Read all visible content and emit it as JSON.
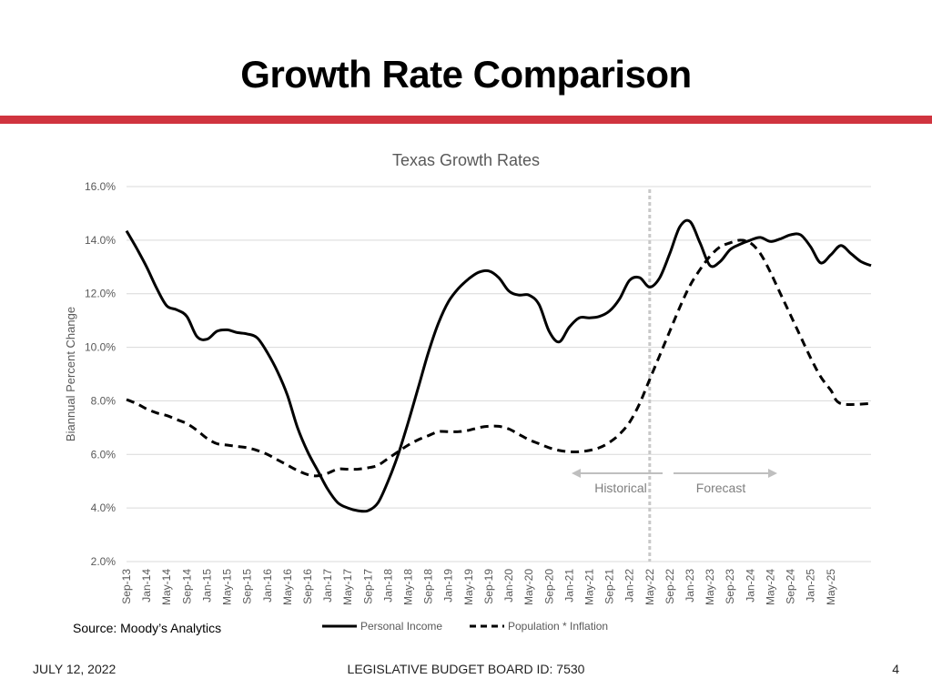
{
  "slide": {
    "title": "Growth Rate Comparison",
    "accent_color": "#d0343f",
    "source": "Source: Moody’s Analytics"
  },
  "footer": {
    "date": "JULY 12, 2022",
    "center": "LEGISLATIVE BUDGET BOARD ID: 7530",
    "page": "4"
  },
  "chart_data": {
    "type": "line",
    "title": "Texas Growth Rates",
    "xlabel": "",
    "ylabel": "Biannual Percent Change",
    "ylim": [
      2.0,
      16.0
    ],
    "y_ticks": [
      "2.0%",
      "4.0%",
      "6.0%",
      "8.0%",
      "10.0%",
      "12.0%",
      "14.0%",
      "16.0%"
    ],
    "grid": true,
    "legend_position": "bottom",
    "categories": [
      "Sep-13",
      "Jan-14",
      "May-14",
      "Sep-14",
      "Jan-15",
      "May-15",
      "Sep-15",
      "Jan-16",
      "May-16",
      "Sep-16",
      "Jan-17",
      "May-17",
      "Sep-17",
      "Jan-18",
      "May-18",
      "Sep-18",
      "Jan-19",
      "May-19",
      "Sep-19",
      "Jan-20",
      "May-20",
      "Sep-20",
      "Jan-21",
      "May-21",
      "Sep-21",
      "Jan-22",
      "May-22",
      "Sep-22",
      "Jan-23",
      "May-23",
      "Sep-23",
      "Jan-24",
      "May-24",
      "Sep-24",
      "Jan-25",
      "May-25"
    ],
    "x_ticks": [
      "Sep-13",
      "Jan-14",
      "May-14",
      "Sep-14",
      "Jan-15",
      "May-15",
      "Sep-15",
      "Jan-16",
      "May-16",
      "Sep-16",
      "Jan-17",
      "May-17",
      "Sep-17",
      "Jan-18",
      "May-18",
      "Sep-18",
      "Jan-19",
      "May-19",
      "Sep-19",
      "Jan-20",
      "May-20",
      "Sep-20",
      "Jan-21",
      "May-21",
      "Sep-21",
      "Jan-22",
      "May-22",
      "Sep-22",
      "Jan-23",
      "May-23",
      "Sep-23",
      "Jan-24",
      "May-24",
      "Sep-24",
      "Jan-25",
      "May-25"
    ],
    "divider_at": "May-22",
    "annotations": {
      "left": "Historical",
      "right": "Forecast"
    },
    "series": [
      {
        "name": "Personal Income",
        "style": "solid",
        "color": "#000000",
        "points": [
          [
            "Sep-13",
            14.35
          ],
          [
            "Nov-13",
            13.7
          ],
          [
            "Jan-14",
            13.0
          ],
          [
            "Mar-14",
            12.2
          ],
          [
            "May-14",
            11.55
          ],
          [
            "Jul-14",
            11.4
          ],
          [
            "Sep-14",
            11.15
          ],
          [
            "Nov-14",
            10.4
          ],
          [
            "Jan-15",
            10.3
          ],
          [
            "Mar-15",
            10.6
          ],
          [
            "May-15",
            10.65
          ],
          [
            "Jul-15",
            10.55
          ],
          [
            "Sep-15",
            10.5
          ],
          [
            "Nov-15",
            10.35
          ],
          [
            "Jan-16",
            9.8
          ],
          [
            "Mar-16",
            9.1
          ],
          [
            "May-16",
            8.2
          ],
          [
            "Jul-16",
            7.0
          ],
          [
            "Sep-16",
            6.1
          ],
          [
            "Nov-16",
            5.4
          ],
          [
            "Jan-17",
            4.7
          ],
          [
            "Mar-17",
            4.2
          ],
          [
            "May-17",
            4.0
          ],
          [
            "Jul-17",
            3.9
          ],
          [
            "Sep-17",
            3.9
          ],
          [
            "Nov-17",
            4.2
          ],
          [
            "Jan-18",
            5.0
          ],
          [
            "Mar-18",
            6.0
          ],
          [
            "May-18",
            7.2
          ],
          [
            "Jul-18",
            8.5
          ],
          [
            "Sep-18",
            9.8
          ],
          [
            "Nov-18",
            10.9
          ],
          [
            "Jan-19",
            11.7
          ],
          [
            "Mar-19",
            12.2
          ],
          [
            "May-19",
            12.55
          ],
          [
            "Jul-19",
            12.8
          ],
          [
            "Sep-19",
            12.85
          ],
          [
            "Nov-19",
            12.6
          ],
          [
            "Jan-20",
            12.1
          ],
          [
            "Mar-20",
            11.95
          ],
          [
            "May-20",
            11.95
          ],
          [
            "Jul-20",
            11.6
          ],
          [
            "Sep-20",
            10.6
          ],
          [
            "Nov-20",
            10.2
          ],
          [
            "Jan-21",
            10.75
          ],
          [
            "Mar-21",
            11.1
          ],
          [
            "May-21",
            11.1
          ],
          [
            "Jul-21",
            11.15
          ],
          [
            "Sep-21",
            11.35
          ],
          [
            "Nov-21",
            11.8
          ],
          [
            "Jan-22",
            12.5
          ],
          [
            "Mar-22",
            12.6
          ],
          [
            "May-22",
            12.25
          ],
          [
            "Jul-22",
            12.6
          ],
          [
            "Sep-22",
            13.5
          ],
          [
            "Nov-22",
            14.5
          ],
          [
            "Jan-23",
            14.7
          ],
          [
            "Mar-23",
            13.9
          ],
          [
            "May-23",
            13.05
          ],
          [
            "Jul-23",
            13.2
          ],
          [
            "Sep-23",
            13.65
          ],
          [
            "Nov-23",
            13.85
          ],
          [
            "Jan-24",
            14.0
          ],
          [
            "Mar-24",
            14.1
          ],
          [
            "May-24",
            13.95
          ],
          [
            "Jul-24",
            14.05
          ],
          [
            "Sep-24",
            14.2
          ],
          [
            "Nov-24",
            14.2
          ],
          [
            "Jan-25",
            13.75
          ],
          [
            "Mar-25",
            13.15
          ],
          [
            "May-25",
            13.45
          ],
          [
            "Jul-25",
            13.8
          ],
          [
            "Sep-25",
            13.5
          ],
          [
            "Nov-25",
            13.2
          ],
          [
            "Jan-26",
            13.05
          ]
        ]
      },
      {
        "name": "Population * Inflation",
        "style": "dashed",
        "color": "#000000",
        "points": [
          [
            "Sep-13",
            8.05
          ],
          [
            "Nov-13",
            7.9
          ],
          [
            "Jan-14",
            7.7
          ],
          [
            "Mar-14",
            7.55
          ],
          [
            "May-14",
            7.45
          ],
          [
            "Jul-14",
            7.3
          ],
          [
            "Sep-14",
            7.15
          ],
          [
            "Nov-14",
            6.9
          ],
          [
            "Jan-15",
            6.6
          ],
          [
            "Mar-15",
            6.4
          ],
          [
            "May-15",
            6.35
          ],
          [
            "Jul-15",
            6.3
          ],
          [
            "Sep-15",
            6.25
          ],
          [
            "Nov-15",
            6.15
          ],
          [
            "Jan-16",
            6.0
          ],
          [
            "Mar-16",
            5.8
          ],
          [
            "May-16",
            5.6
          ],
          [
            "Jul-16",
            5.4
          ],
          [
            "Sep-16",
            5.25
          ],
          [
            "Nov-16",
            5.2
          ],
          [
            "Jan-17",
            5.3
          ],
          [
            "Mar-17",
            5.45
          ],
          [
            "May-17",
            5.45
          ],
          [
            "Jul-17",
            5.45
          ],
          [
            "Sep-17",
            5.5
          ],
          [
            "Nov-17",
            5.6
          ],
          [
            "Jan-18",
            5.85
          ],
          [
            "Mar-18",
            6.1
          ],
          [
            "May-18",
            6.35
          ],
          [
            "Jul-18",
            6.55
          ],
          [
            "Sep-18",
            6.7
          ],
          [
            "Nov-18",
            6.85
          ],
          [
            "Jan-19",
            6.85
          ],
          [
            "Mar-19",
            6.85
          ],
          [
            "May-19",
            6.9
          ],
          [
            "Jul-19",
            7.0
          ],
          [
            "Sep-19",
            7.05
          ],
          [
            "Nov-19",
            7.05
          ],
          [
            "Jan-20",
            6.95
          ],
          [
            "Mar-20",
            6.75
          ],
          [
            "May-20",
            6.55
          ],
          [
            "Jul-20",
            6.4
          ],
          [
            "Sep-20",
            6.25
          ],
          [
            "Nov-20",
            6.15
          ],
          [
            "Jan-21",
            6.1
          ],
          [
            "Mar-21",
            6.1
          ],
          [
            "May-21",
            6.15
          ],
          [
            "Jul-21",
            6.25
          ],
          [
            "Sep-21",
            6.45
          ],
          [
            "Nov-21",
            6.75
          ],
          [
            "Jan-22",
            7.2
          ],
          [
            "Mar-22",
            7.9
          ],
          [
            "May-22",
            8.8
          ],
          [
            "Jul-22",
            9.7
          ],
          [
            "Sep-22",
            10.6
          ],
          [
            "Nov-22",
            11.5
          ],
          [
            "Jan-23",
            12.3
          ],
          [
            "Mar-23",
            12.9
          ],
          [
            "May-23",
            13.4
          ],
          [
            "Jul-23",
            13.75
          ],
          [
            "Sep-23",
            13.9
          ],
          [
            "Nov-23",
            14.0
          ],
          [
            "Jan-24",
            13.9
          ],
          [
            "Mar-24",
            13.5
          ],
          [
            "May-24",
            12.8
          ],
          [
            "Jul-24",
            12.0
          ],
          [
            "Sep-24",
            11.2
          ],
          [
            "Nov-24",
            10.4
          ],
          [
            "Jan-25",
            9.6
          ],
          [
            "Mar-25",
            8.9
          ],
          [
            "May-25",
            8.4
          ],
          [
            "Jul-25",
            7.9
          ],
          [
            "Jan-26",
            7.9
          ]
        ]
      }
    ]
  }
}
